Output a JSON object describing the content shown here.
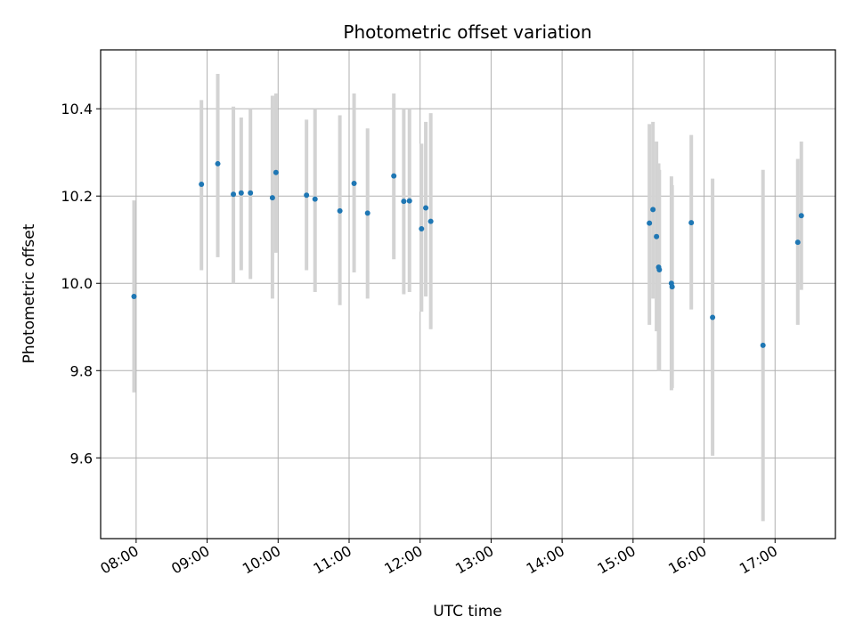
{
  "chart_data": {
    "type": "scatter",
    "title": "Photometric offset variation",
    "xlabel": "UTC time",
    "ylabel": "Photometric offset",
    "x_unit": "hours (UTC)",
    "xlim": [
      7.5,
      17.85
    ],
    "ylim": [
      9.415,
      10.535
    ],
    "x_ticks": [
      8,
      9,
      10,
      11,
      12,
      13,
      14,
      15,
      16,
      17
    ],
    "x_tick_labels": [
      "08:00",
      "09:00",
      "10:00",
      "11:00",
      "12:00",
      "13:00",
      "14:00",
      "15:00",
      "16:00",
      "17:00"
    ],
    "y_ticks": [
      9.6,
      9.8,
      10.0,
      10.2,
      10.4
    ],
    "y_tick_labels": [
      "9.6",
      "9.8",
      "10.0",
      "10.2",
      "10.4"
    ],
    "grid": true,
    "point_color": "#1f77b4",
    "errorbar_color": "#d3d3d3",
    "points": [
      {
        "x": 7.97,
        "y": 9.97,
        "lo": 9.75,
        "hi": 10.19
      },
      {
        "x": 8.92,
        "y": 10.227,
        "lo": 10.03,
        "hi": 10.42
      },
      {
        "x": 9.15,
        "y": 10.274,
        "lo": 10.06,
        "hi": 10.48
      },
      {
        "x": 9.37,
        "y": 10.204,
        "lo": 10.0,
        "hi": 10.405
      },
      {
        "x": 9.48,
        "y": 10.207,
        "lo": 10.03,
        "hi": 10.38
      },
      {
        "x": 9.61,
        "y": 10.207,
        "lo": 10.01,
        "hi": 10.4
      },
      {
        "x": 9.92,
        "y": 10.196,
        "lo": 9.965,
        "hi": 10.43
      },
      {
        "x": 9.97,
        "y": 10.254,
        "lo": 10.07,
        "hi": 10.435
      },
      {
        "x": 10.4,
        "y": 10.202,
        "lo": 10.03,
        "hi": 10.375
      },
      {
        "x": 10.52,
        "y": 10.193,
        "lo": 9.98,
        "hi": 10.4
      },
      {
        "x": 10.87,
        "y": 10.166,
        "lo": 9.95,
        "hi": 10.385
      },
      {
        "x": 11.07,
        "y": 10.229,
        "lo": 10.025,
        "hi": 10.435
      },
      {
        "x": 11.26,
        "y": 10.161,
        "lo": 9.965,
        "hi": 10.355
      },
      {
        "x": 11.63,
        "y": 10.246,
        "lo": 10.055,
        "hi": 10.435
      },
      {
        "x": 11.77,
        "y": 10.188,
        "lo": 9.975,
        "hi": 10.4
      },
      {
        "x": 11.85,
        "y": 10.189,
        "lo": 9.98,
        "hi": 10.4
      },
      {
        "x": 12.02,
        "y": 10.125,
        "lo": 9.935,
        "hi": 10.32
      },
      {
        "x": 12.08,
        "y": 10.173,
        "lo": 9.97,
        "hi": 10.37
      },
      {
        "x": 12.15,
        "y": 10.142,
        "lo": 9.895,
        "hi": 10.39
      },
      {
        "x": 15.23,
        "y": 10.138,
        "lo": 9.905,
        "hi": 10.365
      },
      {
        "x": 15.28,
        "y": 10.169,
        "lo": 9.965,
        "hi": 10.37
      },
      {
        "x": 15.33,
        "y": 10.107,
        "lo": 9.89,
        "hi": 10.325
      },
      {
        "x": 15.36,
        "y": 10.037,
        "lo": 9.8,
        "hi": 10.275
      },
      {
        "x": 15.37,
        "y": 10.031,
        "lo": 9.8,
        "hi": 10.26
      },
      {
        "x": 15.54,
        "y": 10.0,
        "lo": 9.755,
        "hi": 10.245
      },
      {
        "x": 15.55,
        "y": 9.992,
        "lo": 9.76,
        "hi": 10.225
      },
      {
        "x": 15.82,
        "y": 10.139,
        "lo": 9.94,
        "hi": 10.34
      },
      {
        "x": 16.12,
        "y": 9.922,
        "lo": 9.605,
        "hi": 10.24
      },
      {
        "x": 16.83,
        "y": 9.858,
        "lo": 9.455,
        "hi": 10.26
      },
      {
        "x": 17.32,
        "y": 10.094,
        "lo": 9.905,
        "hi": 10.285
      },
      {
        "x": 17.37,
        "y": 10.155,
        "lo": 9.985,
        "hi": 10.325
      }
    ]
  }
}
